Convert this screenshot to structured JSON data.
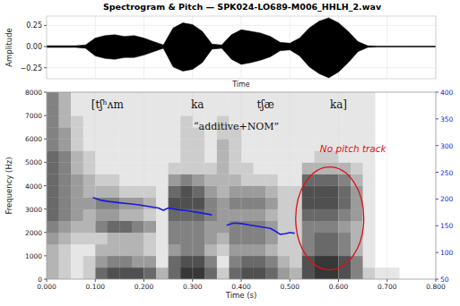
{
  "chart_data": {
    "type": "spectrogram",
    "title": "Spectrogram & Pitch — SPK024-LO689-M006_HHLH_2.wav",
    "grid": true,
    "waveform": {
      "ylabel": "Amplitude",
      "xlabel": "Time",
      "color": "#000000",
      "xlim": [
        0,
        0.8
      ],
      "ylim": [
        -0.38,
        0.36
      ],
      "yticks": [
        {
          "value": 0.25,
          "label": "0.25"
        },
        {
          "value": 0,
          "label": "0.00"
        },
        {
          "value": -0.25,
          "label": "−0.25"
        }
      ],
      "x": [
        0,
        0.02,
        0.04,
        0.06,
        0.08,
        0.1,
        0.12,
        0.14,
        0.16,
        0.18,
        0.2,
        0.22,
        0.24,
        0.26,
        0.28,
        0.3,
        0.32,
        0.34,
        0.36,
        0.38,
        0.4,
        0.42,
        0.44,
        0.46,
        0.48,
        0.5,
        0.52,
        0.54,
        0.56,
        0.58,
        0.6,
        0.62,
        0.64,
        0.66,
        0.68,
        0.7,
        0.72,
        0.74,
        0.76,
        0.78,
        0.8
      ],
      "max": [
        0.01,
        0.01,
        0.01,
        0.01,
        0.02,
        0.1,
        0.13,
        0.14,
        0.12,
        0.13,
        0.1,
        0.06,
        0.02,
        0.22,
        0.28,
        0.26,
        0.18,
        0.03,
        0.02,
        0.14,
        0.2,
        0.18,
        0.16,
        0.12,
        0.05,
        0.04,
        0.1,
        0.22,
        0.3,
        0.34,
        0.28,
        0.18,
        0.06,
        0.01,
        0.005,
        0.005,
        0.005,
        0.005,
        0.005,
        0.005,
        0.005
      ],
      "min": [
        -0.01,
        -0.01,
        -0.01,
        -0.01,
        -0.02,
        -0.11,
        -0.14,
        -0.15,
        -0.13,
        -0.13,
        -0.1,
        -0.06,
        -0.02,
        -0.24,
        -0.29,
        -0.27,
        -0.19,
        -0.03,
        -0.02,
        -0.15,
        -0.21,
        -0.19,
        -0.16,
        -0.12,
        -0.05,
        -0.04,
        -0.11,
        -0.24,
        -0.32,
        -0.37,
        -0.3,
        -0.19,
        -0.06,
        -0.01,
        -0.005,
        -0.005,
        -0.005,
        -0.005,
        -0.005,
        -0.005,
        -0.005
      ]
    },
    "xlabel": "Time (s)",
    "ylabel": "Frequency (Hz)",
    "xlim": [
      0,
      0.8
    ],
    "xticks": [
      {
        "value": 0,
        "label": "0.000"
      },
      {
        "value": 0.1,
        "label": "0.100"
      },
      {
        "value": 0.2,
        "label": "0.200"
      },
      {
        "value": 0.3,
        "label": "0.300"
      },
      {
        "value": 0.4,
        "label": "0.400"
      },
      {
        "value": 0.5,
        "label": "0.500"
      },
      {
        "value": 0.6,
        "label": "0.600"
      },
      {
        "value": 0.7,
        "label": "0.700"
      },
      {
        "value": 0.8,
        "label": "0.800"
      }
    ],
    "ylim": [
      0,
      8000
    ],
    "yticks": [
      0,
      1000,
      2000,
      3000,
      4000,
      5000,
      6000,
      7000,
      8000
    ],
    "y2lim": [
      50,
      400
    ],
    "y2ticks": [
      50,
      100,
      150,
      200,
      250,
      300,
      350,
      400
    ],
    "spectrogram": {
      "time_edges": [
        0,
        0.025,
        0.05,
        0.075,
        0.1,
        0.125,
        0.15,
        0.175,
        0.2,
        0.225,
        0.25,
        0.275,
        0.3,
        0.325,
        0.35,
        0.375,
        0.4,
        0.425,
        0.45,
        0.475,
        0.5,
        0.525,
        0.55,
        0.575,
        0.6,
        0.625,
        0.65,
        0.675,
        0.7,
        0.725,
        0.75,
        0.775,
        0.8
      ],
      "freq_edges": [
        0,
        500,
        1000,
        1500,
        2000,
        2500,
        3000,
        3500,
        4000,
        4500,
        5000,
        5500,
        6000,
        6500,
        7000,
        7500,
        8000
      ],
      "cells": [
        [
          3,
          3,
          3,
          4,
          5,
          6,
          6,
          6,
          6,
          6,
          6,
          5,
          5,
          5,
          5,
          5
        ],
        [
          2,
          2,
          2,
          3,
          4,
          5,
          5,
          5,
          5,
          5,
          5,
          4,
          4,
          3,
          3,
          3
        ],
        [
          1,
          1,
          1,
          2,
          3,
          4,
          4,
          4,
          4,
          3,
          3,
          2,
          2,
          2,
          1,
          1
        ],
        [
          2,
          2,
          1,
          2,
          3,
          3,
          4,
          3,
          3,
          2,
          2,
          1,
          1,
          1,
          1,
          1
        ],
        [
          6,
          4,
          3,
          2,
          5,
          4,
          5,
          3,
          2,
          1,
          1,
          1,
          1,
          1,
          1,
          1
        ],
        [
          7,
          5,
          3,
          3,
          6,
          4,
          5,
          3,
          2,
          1,
          1,
          1,
          1,
          1,
          1,
          1
        ],
        [
          7,
          5,
          3,
          3,
          6,
          3,
          4,
          2,
          1,
          1,
          1,
          1,
          1,
          1,
          1,
          1
        ],
        [
          7,
          4,
          3,
          3,
          5,
          3,
          4,
          2,
          1,
          1,
          1,
          1,
          1,
          1,
          1,
          1
        ],
        [
          6,
          4,
          2,
          2,
          4,
          2,
          3,
          2,
          1,
          1,
          1,
          1,
          1,
          1,
          1,
          1
        ],
        [
          3,
          1,
          1,
          1,
          1,
          1,
          1,
          1,
          1,
          1,
          1,
          1,
          1,
          1,
          1,
          1
        ],
        [
          6,
          6,
          4,
          5,
          5,
          6,
          7,
          6,
          4,
          2,
          1,
          1,
          1,
          1,
          1,
          1
        ],
        [
          8,
          7,
          5,
          5,
          5,
          6,
          7,
          7,
          5,
          2,
          2,
          2,
          2,
          2,
          1,
          1
        ],
        [
          8,
          7,
          5,
          5,
          5,
          6,
          7,
          6,
          4,
          2,
          2,
          2,
          2,
          1,
          1,
          1
        ],
        [
          6,
          5,
          3,
          4,
          4,
          5,
          5,
          4,
          3,
          2,
          1,
          1,
          1,
          1,
          1,
          1
        ],
        [
          2,
          1,
          2,
          3,
          4,
          4,
          4,
          3,
          3,
          3,
          3,
          3,
          2,
          2,
          1,
          1
        ],
        [
          6,
          5,
          4,
          5,
          5,
          4,
          5,
          4,
          3,
          2,
          2,
          2,
          2,
          1,
          1,
          1
        ],
        [
          7,
          6,
          4,
          5,
          5,
          4,
          5,
          4,
          2,
          2,
          1,
          1,
          1,
          1,
          1,
          1
        ],
        [
          7,
          6,
          4,
          5,
          5,
          4,
          5,
          4,
          2,
          1,
          1,
          1,
          1,
          1,
          1,
          1
        ],
        [
          6,
          5,
          3,
          4,
          4,
          3,
          4,
          3,
          2,
          1,
          1,
          1,
          1,
          1,
          1,
          1
        ],
        [
          4,
          3,
          2,
          2,
          2,
          2,
          2,
          2,
          1,
          1,
          1,
          1,
          1,
          1,
          1,
          1
        ],
        [
          3,
          2,
          2,
          2,
          2,
          2,
          2,
          2,
          1,
          1,
          1,
          1,
          1,
          1,
          1,
          1
        ],
        [
          7,
          7,
          5,
          5,
          5,
          6,
          7,
          7,
          6,
          3,
          1,
          1,
          1,
          1,
          1,
          1
        ],
        [
          8,
          8,
          6,
          6,
          5,
          6,
          7,
          7,
          6,
          3,
          2,
          1,
          1,
          1,
          1,
          1
        ],
        [
          8,
          8,
          6,
          6,
          5,
          6,
          7,
          7,
          6,
          3,
          2,
          1,
          1,
          1,
          1,
          1
        ],
        [
          7,
          7,
          5,
          5,
          4,
          5,
          6,
          6,
          5,
          3,
          1,
          1,
          1,
          1,
          1,
          1
        ],
        [
          5,
          5,
          3,
          3,
          3,
          4,
          4,
          4,
          3,
          2,
          1,
          1,
          1,
          1,
          1,
          1
        ],
        [
          2,
          1,
          1,
          1,
          1,
          1,
          1,
          1,
          1,
          1,
          1,
          1,
          1,
          1,
          1,
          1
        ],
        [
          1,
          0,
          0,
          0,
          0,
          0,
          0,
          0,
          0,
          0,
          0,
          0,
          0,
          0,
          0,
          0
        ],
        [
          1,
          0,
          0,
          0,
          0,
          0,
          0,
          0,
          0,
          0,
          0,
          0,
          0,
          0,
          0,
          0
        ],
        [
          0,
          0,
          0,
          0,
          0,
          0,
          0,
          0,
          0,
          0,
          0,
          0,
          0,
          0,
          0,
          0
        ],
        [
          0,
          0,
          0,
          0,
          0,
          0,
          0,
          0,
          0,
          0,
          0,
          0,
          0,
          0,
          0,
          0
        ],
        [
          0,
          0,
          0,
          0,
          0,
          0,
          0,
          0,
          0,
          0,
          0,
          0,
          0,
          0,
          0,
          0
        ]
      ]
    },
    "series": [
      {
        "color": "#1a1adb",
        "axis": "y2",
        "line_style": "solid",
        "x": [
          0.095,
          0.11,
          0.13,
          0.15,
          0.17,
          0.19,
          0.21,
          0.23,
          0.24,
          0.25,
          0.27,
          0.29,
          0.31,
          0.33,
          0.34,
          null,
          0.37,
          0.385,
          0.4,
          0.42,
          0.44,
          0.46,
          0.47,
          0.48,
          0.49,
          0.5,
          0.51
        ],
        "values": [
          203,
          198,
          195,
          193,
          191,
          189,
          186,
          183,
          179,
          183,
          180,
          178,
          175,
          172,
          170,
          null,
          151,
          155,
          154,
          151,
          148,
          145,
          140,
          134,
          135,
          137,
          136
        ]
      }
    ],
    "annotations": [
      "[tʃʰʌm",
      "ka",
      "tʃæ",
      "ka]",
      "“additive+NOM”",
      "No pitch track"
    ]
  }
}
